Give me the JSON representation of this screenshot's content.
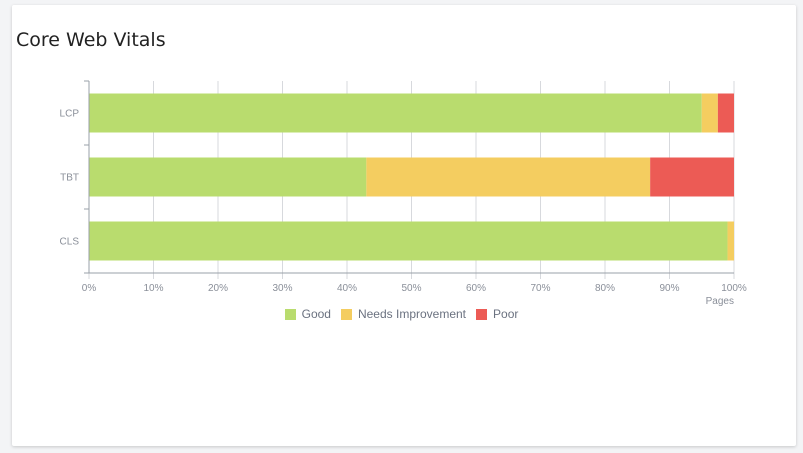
{
  "card": {
    "title": "Core Web Vitals"
  },
  "chart_data": {
    "type": "bar",
    "orientation": "horizontal",
    "stacked": true,
    "categories": [
      "LCP",
      "TBT",
      "CLS"
    ],
    "series": [
      {
        "name": "Good",
        "color": "#b9dc6e",
        "values": [
          95,
          43,
          99
        ]
      },
      {
        "name": "Needs Improvement",
        "color": "#f4cd60",
        "values": [
          2.5,
          44,
          1
        ]
      },
      {
        "name": "Poor",
        "color": "#ec5b55",
        "values": [
          2.5,
          13,
          0
        ]
      }
    ],
    "xticks": [
      "0%",
      "10%",
      "20%",
      "30%",
      "40%",
      "50%",
      "60%",
      "70%",
      "80%",
      "90%",
      "100%"
    ],
    "xlim": [
      0,
      100
    ],
    "xlabel": "Pages",
    "grid": true,
    "legend": "bottom-center"
  }
}
